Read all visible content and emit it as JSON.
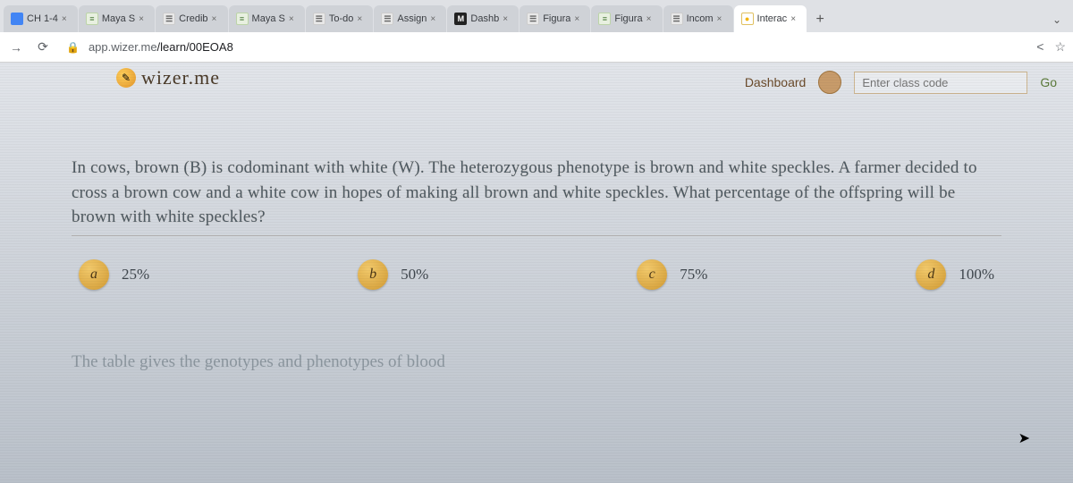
{
  "browser": {
    "tabs": [
      {
        "label": "CH 1-4",
        "favclass": "fav-blue",
        "favglyph": ""
      },
      {
        "label": "Maya S",
        "favclass": "fav-green",
        "favglyph": "≡"
      },
      {
        "label": "Credib",
        "favclass": "fav-pers",
        "favglyph": "☰"
      },
      {
        "label": "Maya S",
        "favclass": "fav-green",
        "favglyph": "≡"
      },
      {
        "label": "To-do",
        "favclass": "fav-pers",
        "favglyph": "☰"
      },
      {
        "label": "Assign",
        "favclass": "fav-pers",
        "favglyph": "☰"
      },
      {
        "label": "Dashb",
        "favclass": "fav-m",
        "favglyph": "M"
      },
      {
        "label": "Figura",
        "favclass": "fav-pers",
        "favglyph": "☰"
      },
      {
        "label": "Figura",
        "favclass": "fav-green",
        "favglyph": "≡"
      },
      {
        "label": "Incom",
        "favclass": "fav-pers",
        "favglyph": "☰"
      },
      {
        "label": "Interac",
        "favclass": "fav-bulb",
        "favglyph": "●",
        "active": true
      }
    ],
    "url_host": "app.wizer.me",
    "url_path": "/learn/00EOA8"
  },
  "header": {
    "logo_text": "wizer.me",
    "dashboard": "Dashboard",
    "code_placeholder": "Enter class code",
    "go": "Go"
  },
  "question": {
    "text": "In cows, brown (B) is codominant with white (W). The heterozygous phenotype is brown and white speckles. A farmer decided to cross a brown cow and a white cow in hopes of making all brown and white speckles. What percentage of the offspring will be brown with white speckles?"
  },
  "answers": [
    {
      "letter": "a",
      "text": "25%"
    },
    {
      "letter": "b",
      "text": "50%"
    },
    {
      "letter": "c",
      "text": "75%"
    },
    {
      "letter": "d",
      "text": "100%"
    }
  ],
  "next_question_preview": "The table gives the genotypes and phenotypes of blood"
}
